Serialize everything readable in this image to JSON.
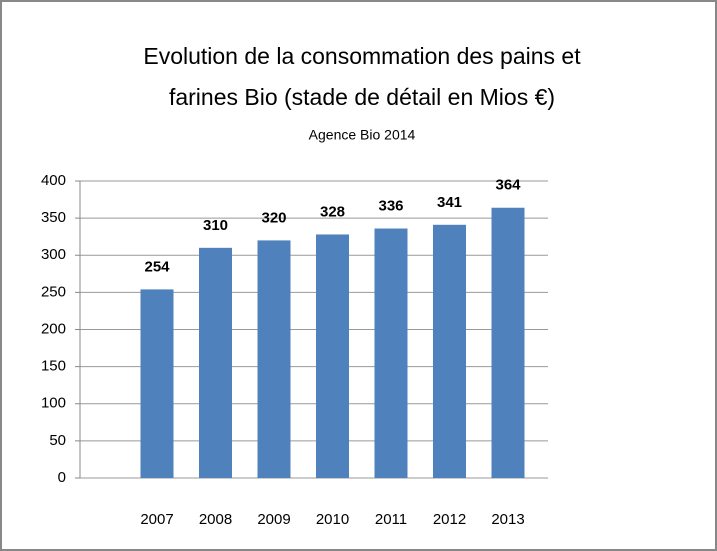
{
  "chart_data": {
    "type": "bar",
    "title": [
      "Evolution de la  consommation des pains et",
      "farines Bio  (stade de détail en Mios €)"
    ],
    "subtitle": "Agence Bio 2014",
    "categories": [
      "2007",
      "2008",
      "2009",
      "2010",
      "2011",
      "2012",
      "2013"
    ],
    "values": [
      254,
      310,
      320,
      328,
      336,
      341,
      364
    ],
    "color": "#4f81bd",
    "ylim": [
      0,
      400
    ],
    "yticks": [
      0,
      50,
      100,
      150,
      200,
      250,
      300,
      350,
      400
    ],
    "grid": true
  }
}
